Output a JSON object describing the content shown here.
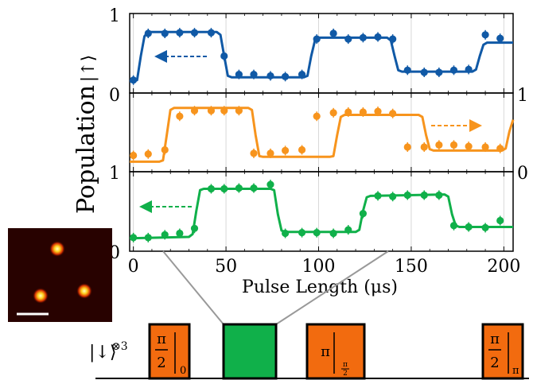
{
  "figure": {
    "ylabel": "Population",
    "ylabel_ket": "|↑⟩",
    "xlabel": "Pulse Length (μs)",
    "state_label": "|↓⟩",
    "state_exponent": "⊗3"
  },
  "chart_data": [
    {
      "type": "line",
      "panel": "top",
      "color": "#1059A6",
      "arrow": "left",
      "xlim": [
        -2,
        205
      ],
      "ylim": [
        0,
        1
      ],
      "xticks": [
        0,
        50,
        100,
        150,
        200
      ],
      "ytick_labels_left": [
        "0",
        "1"
      ],
      "ytick_labels_right": [],
      "grid": "vertical at x ticks",
      "markers": {
        "x": [
          0,
          8,
          17,
          25,
          33,
          42,
          49,
          57,
          65,
          74,
          82,
          91,
          99,
          108,
          116,
          124,
          132,
          140,
          148,
          157,
          165,
          173,
          181,
          190,
          198
        ],
        "y": [
          0.16,
          0.82,
          0.82,
          0.83,
          0.83,
          0.83,
          0.5,
          0.24,
          0.24,
          0.22,
          0.21,
          0.24,
          0.74,
          0.82,
          0.74,
          0.76,
          0.77,
          0.74,
          0.3,
          0.27,
          0.27,
          0.3,
          0.31,
          0.8,
          0.75
        ]
      },
      "fit": {
        "x": [
          -2,
          2,
          4,
          6,
          8,
          45,
          47,
          49,
          51,
          53,
          92,
          94,
          96,
          98,
          100,
          137,
          139,
          141,
          143,
          145,
          183,
          185,
          187,
          189,
          191,
          205
        ],
        "y": [
          0.14,
          0.16,
          0.5,
          0.78,
          0.84,
          0.84,
          0.8,
          0.5,
          0.22,
          0.2,
          0.2,
          0.22,
          0.5,
          0.72,
          0.76,
          0.76,
          0.72,
          0.5,
          0.3,
          0.28,
          0.28,
          0.31,
          0.5,
          0.66,
          0.69,
          0.69
        ]
      }
    },
    {
      "type": "line",
      "panel": "middle",
      "color": "#F7941D",
      "arrow": "right",
      "xlim": [
        -2,
        205
      ],
      "ylim": [
        0,
        1
      ],
      "xticks": [
        0,
        50,
        100,
        150,
        200
      ],
      "ytick_labels_left": [
        "0"
      ],
      "ytick_labels_right": [
        "1",
        "0"
      ],
      "grid": "vertical at x ticks",
      "markers": {
        "x": [
          0,
          8,
          17,
          25,
          33,
          42,
          49,
          57,
          65,
          74,
          82,
          91,
          99,
          108,
          116,
          124,
          132,
          140,
          148,
          157,
          165,
          173,
          181,
          190,
          198
        ],
        "y": [
          0.21,
          0.23,
          0.29,
          0.77,
          0.85,
          0.85,
          0.85,
          0.85,
          0.24,
          0.24,
          0.28,
          0.29,
          0.77,
          0.82,
          0.83,
          0.83,
          0.84,
          0.81,
          0.33,
          0.33,
          0.36,
          0.36,
          0.34,
          0.33,
          0.31
        ]
      },
      "fit": {
        "x": [
          -2,
          14,
          16,
          18,
          20,
          22,
          62,
          64,
          66,
          68,
          70,
          106,
          108,
          110,
          112,
          114,
          154,
          156,
          158,
          160,
          162,
          199,
          201,
          203,
          205
        ],
        "y": [
          0.12,
          0.12,
          0.14,
          0.5,
          0.86,
          0.89,
          0.89,
          0.86,
          0.5,
          0.2,
          0.19,
          0.19,
          0.2,
          0.5,
          0.76,
          0.79,
          0.79,
          0.76,
          0.5,
          0.3,
          0.28,
          0.28,
          0.31,
          0.55,
          0.72
        ]
      }
    },
    {
      "type": "line",
      "panel": "bottom",
      "color": "#10B04A",
      "arrow": "left",
      "xlim": [
        -2,
        205
      ],
      "ylim": [
        0,
        1
      ],
      "xticks": [
        0,
        50,
        100,
        150,
        200
      ],
      "xtick_labels": [
        "0",
        "50",
        "100",
        "150",
        "200"
      ],
      "ytick_labels_left": [
        "1",
        "0"
      ],
      "ytick_labels_right": [],
      "grid": "vertical at x ticks",
      "markers": {
        "x": [
          0,
          8,
          17,
          25,
          33,
          42,
          49,
          57,
          65,
          74,
          82,
          91,
          99,
          108,
          116,
          124,
          132,
          140,
          148,
          157,
          165,
          173,
          181,
          190,
          198
        ],
        "y": [
          0.17,
          0.17,
          0.21,
          0.23,
          0.3,
          0.86,
          0.86,
          0.87,
          0.87,
          0.92,
          0.23,
          0.24,
          0.24,
          0.23,
          0.28,
          0.51,
          0.76,
          0.75,
          0.77,
          0.77,
          0.77,
          0.34,
          0.32,
          0.31,
          0.41
        ]
      },
      "fit": {
        "x": [
          -2,
          30,
          32,
          34,
          36,
          38,
          74,
          76,
          78,
          80,
          82,
          120,
          122,
          124,
          126,
          128,
          168,
          170,
          172,
          174,
          176,
          205
        ],
        "y": [
          0.16,
          0.18,
          0.22,
          0.55,
          0.84,
          0.86,
          0.86,
          0.84,
          0.5,
          0.27,
          0.25,
          0.25,
          0.28,
          0.55,
          0.74,
          0.76,
          0.78,
          0.75,
          0.5,
          0.34,
          0.32,
          0.32
        ]
      }
    }
  ],
  "pulses": [
    {
      "fraction": "π/2",
      "num": "π",
      "den": "2",
      "sub": "0",
      "color": "#F26B0F"
    },
    {
      "color": "#10B04A"
    },
    {
      "num": "π",
      "sub_num": "π",
      "sub_den": "2",
      "color": "#F26B0F"
    },
    {
      "fraction": "π/2",
      "num": "π",
      "den": "2",
      "sub": "π",
      "color": "#F26B0F"
    }
  ],
  "inset": {
    "description_free": true
  }
}
